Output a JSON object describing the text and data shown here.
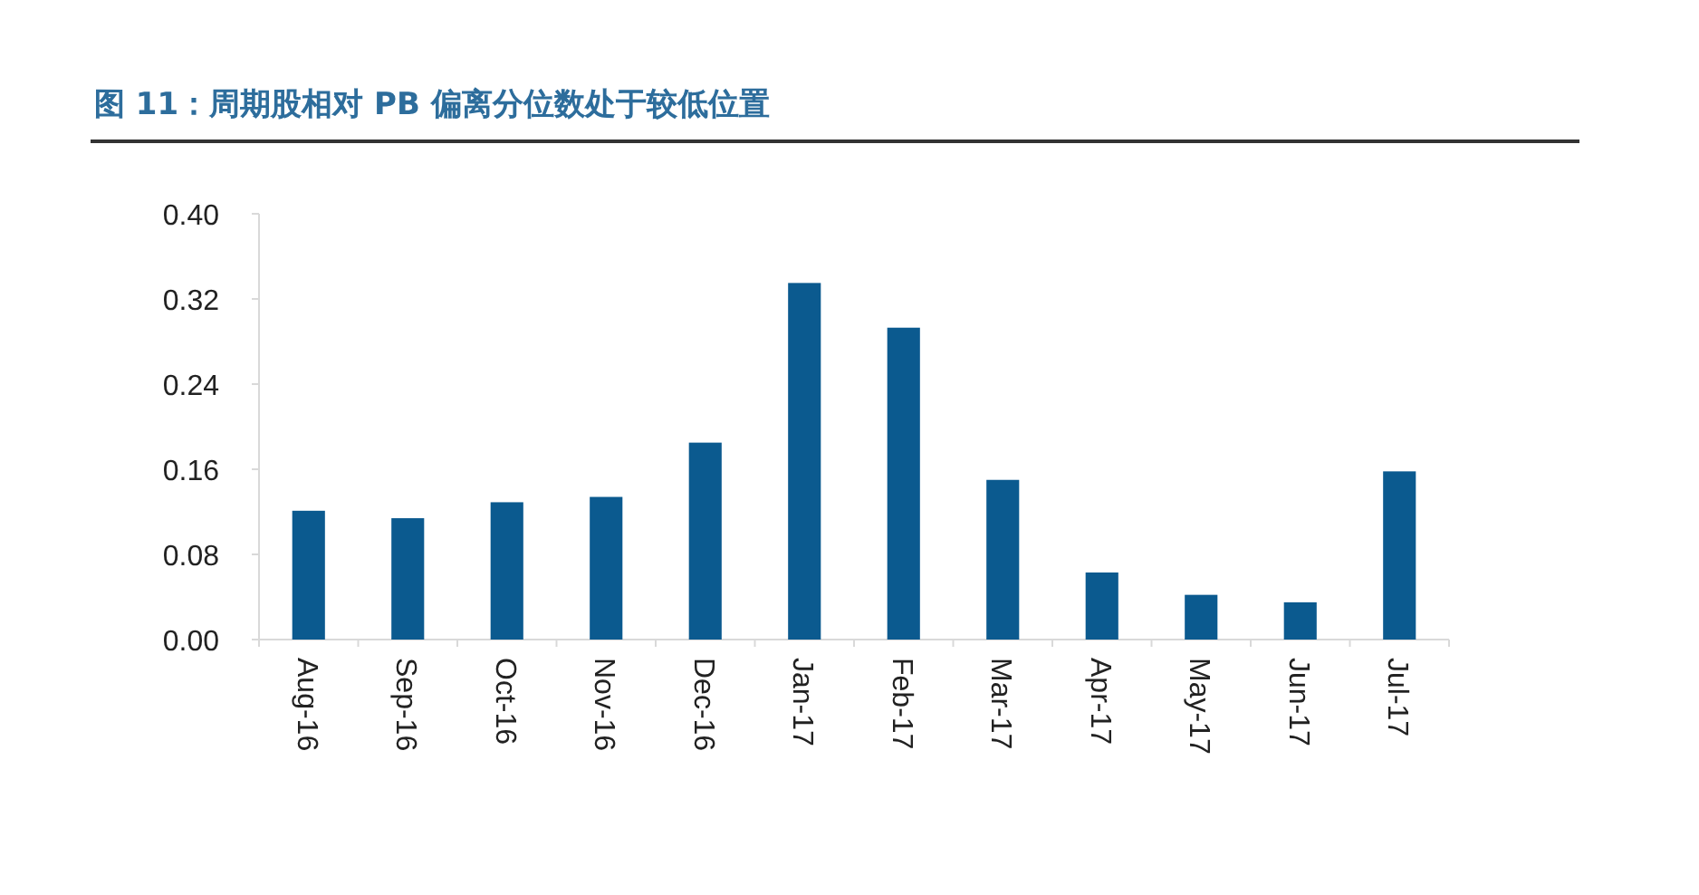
{
  "chart_data": {
    "type": "bar",
    "title": "图 11：周期股相对 PB 偏离分位数处于较低位置",
    "categories": [
      "Aug-16",
      "Sep-16",
      "Oct-16",
      "Nov-16",
      "Dec-16",
      "Jan-17",
      "Feb-17",
      "Mar-17",
      "Apr-17",
      "May-17",
      "Jun-17",
      "Jul-17"
    ],
    "values": [
      0.121,
      0.114,
      0.129,
      0.134,
      0.185,
      0.335,
      0.293,
      0.15,
      0.063,
      0.042,
      0.035,
      0.158
    ],
    "color": "#0b5a8f",
    "ylim": [
      0,
      0.4
    ],
    "yticks": [
      {
        "value": 0,
        "label": "0.00"
      },
      {
        "value": 0.08,
        "label": "0.08"
      },
      {
        "value": 0.16,
        "label": "0.16"
      },
      {
        "value": 0.24,
        "label": "0.24"
      },
      {
        "value": 0.32,
        "label": "0.32"
      },
      {
        "value": 0.4,
        "label": "0.40"
      }
    ],
    "grid": false
  }
}
